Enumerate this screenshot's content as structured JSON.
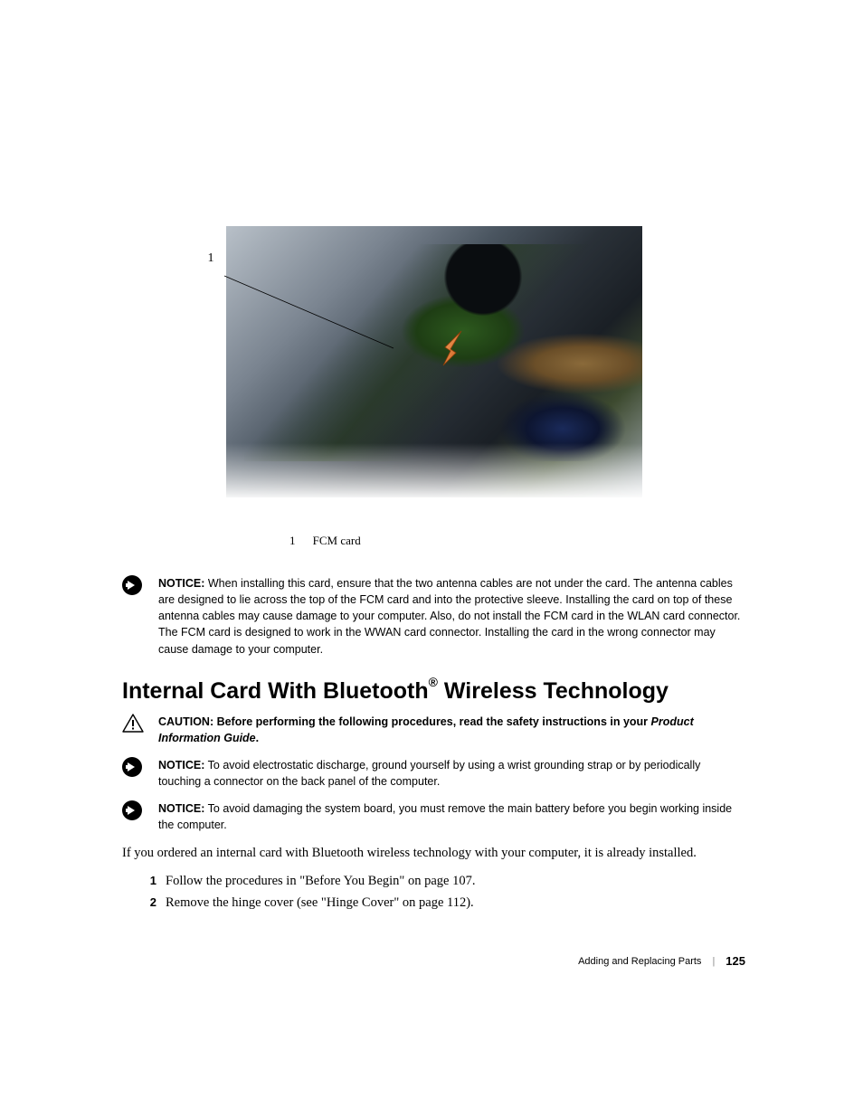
{
  "figure": {
    "callout_num": "1",
    "legend_num": "1",
    "legend_label": "FCM card",
    "arrow_fill": "#e47b2e",
    "arrow_stroke": "#b85a12"
  },
  "notices": {
    "notice1_lead": "NOTICE:",
    "notice1_text": " When installing this card, ensure that the two antenna cables are not under the card. The antenna cables are designed to lie across the top of the FCM card and into the protective sleeve. Installing the card on top of these antenna cables may cause damage to your computer. Also, do not install the FCM card in the WLAN card connector. The FCM card is designed to work in the WWAN card connector. Installing the card in the wrong connector may cause damage to your computer.",
    "caution_lead": "CAUTION: ",
    "caution_text": "Before performing the following procedures, read the safety instructions in your ",
    "caution_italic": "Product Information Guide",
    "caution_tail": ".",
    "notice2_lead": "NOTICE:",
    "notice2_text": " To avoid electrostatic discharge, ground yourself by using a wrist grounding strap or by periodically touching a connector on the back panel of the computer.",
    "notice3_lead": "NOTICE:",
    "notice3_text": " To avoid damaging the system board, you must remove the main battery before you begin working inside the computer."
  },
  "heading": {
    "part1": "Internal Card With Bluetooth",
    "reg": "®",
    "part2": " Wireless Technology"
  },
  "body": {
    "para": "If you ordered an internal card with Bluetooth wireless technology with your computer, it is already installed."
  },
  "steps": [
    {
      "num": "1",
      "text": "Follow the procedures in \"Before You Begin\" on page 107."
    },
    {
      "num": "2",
      "text": "Remove the hinge cover (see \"Hinge Cover\" on page 112)."
    }
  ],
  "footer": {
    "section": "Adding and Replacing Parts",
    "page": "125"
  },
  "colors": {
    "caution_fill": "#fff200",
    "caution_stroke": "#000000"
  }
}
